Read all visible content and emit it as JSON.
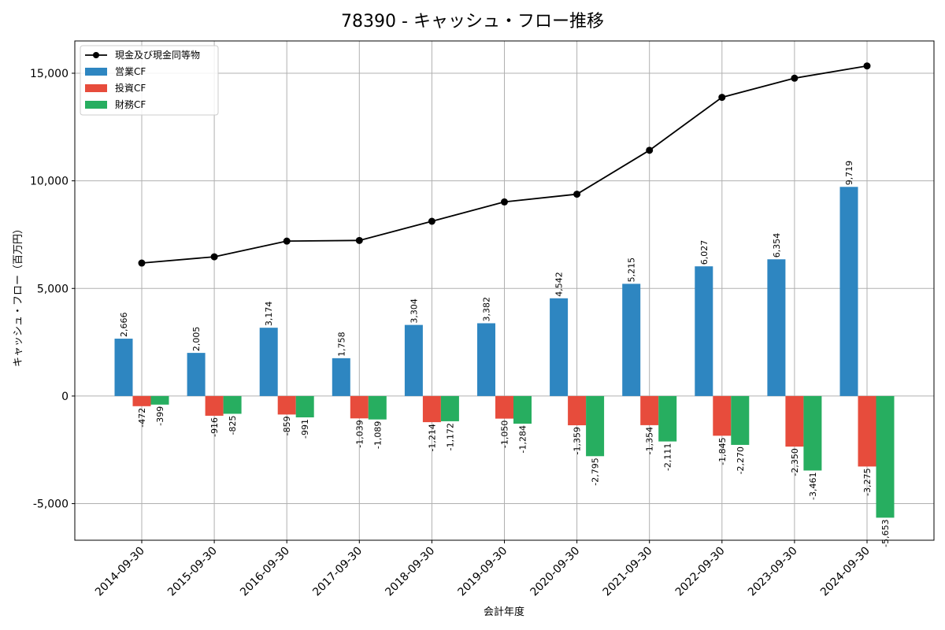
{
  "chart_data": {
    "type": "bar",
    "title": "78390 - キャッシュ・フロー推移",
    "xlabel": "会計年度",
    "ylabel": "キャッシュ・フロー（百万円）",
    "ylim": [
      -6700,
      16500
    ],
    "yticks": [
      -5000,
      0,
      5000,
      10000,
      15000
    ],
    "ytick_labels": [
      "-5,000",
      "0",
      "5,000",
      "10,000",
      "15,000"
    ],
    "grid": true,
    "legend_position": "top-left",
    "categories": [
      "2014-09-30",
      "2015-09-30",
      "2016-09-30",
      "2017-09-30",
      "2018-09-30",
      "2019-09-30",
      "2020-09-30",
      "2021-09-30",
      "2022-09-30",
      "2023-09-30",
      "2024-09-30"
    ],
    "series": [
      {
        "name": "営業CF",
        "kind": "bar",
        "color": "#2e86c1",
        "values": [
          2666,
          2005,
          3174,
          1758,
          3304,
          3382,
          4542,
          5215,
          6027,
          6354,
          9719
        ],
        "labels": [
          "2,666",
          "2,005",
          "3,174",
          "1,758",
          "3,304",
          "3,382",
          "4,542",
          "5,215",
          "6,027",
          "6,354",
          "9,719"
        ]
      },
      {
        "name": "投資CF",
        "kind": "bar",
        "color": "#e74c3c",
        "values": [
          -472,
          -916,
          -859,
          -1039,
          -1214,
          -1050,
          -1359,
          -1354,
          -1845,
          -2350,
          -3275
        ],
        "labels": [
          "-472",
          "-916",
          "-859",
          "-1,039",
          "-1,214",
          "-1,050",
          "-1,359",
          "-1,354",
          "-1,845",
          "-2,350",
          "-3,275"
        ]
      },
      {
        "name": "財務CF",
        "kind": "bar",
        "color": "#27ae60",
        "values": [
          -399,
          -825,
          -991,
          -1089,
          -1172,
          -1284,
          -2795,
          -2111,
          -2270,
          -3461,
          -5653
        ],
        "labels": [
          "-399",
          "-825",
          "-991",
          "-1,089",
          "-1,172",
          "-1,284",
          "-2,795",
          "-2,111",
          "-2,270",
          "-3,461",
          "-5,653"
        ]
      },
      {
        "name": "現金及び現金同等物",
        "kind": "line",
        "color": "#000000",
        "values": [
          6180,
          6470,
          7200,
          7230,
          8120,
          9020,
          9380,
          11420,
          13880,
          14770,
          15340
        ]
      }
    ]
  }
}
